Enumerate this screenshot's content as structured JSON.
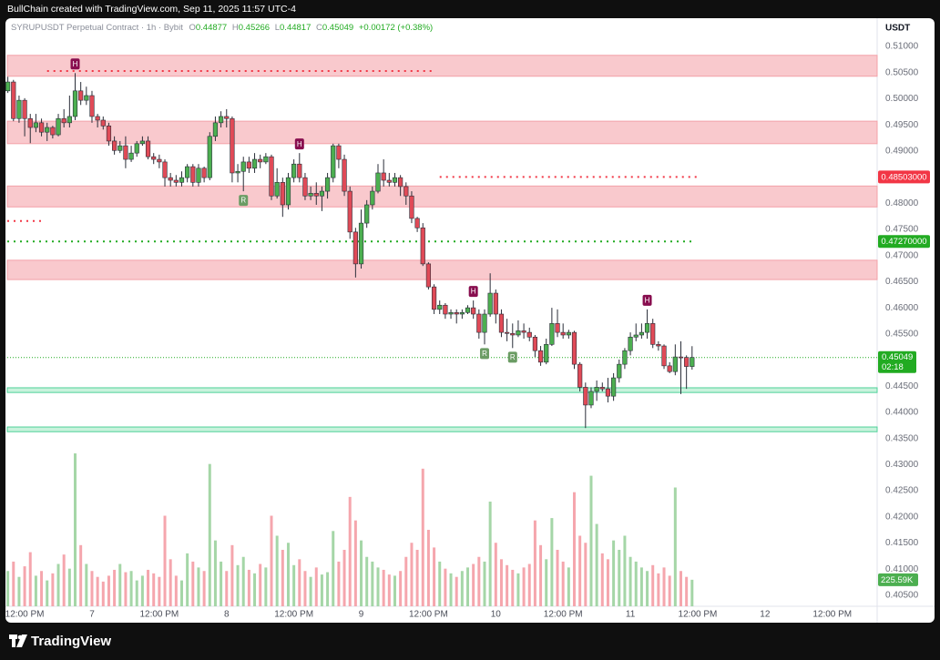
{
  "header": {
    "credit": "BullChain created with TradingView.com, Sep 11, 2025 11:57 UTC-4",
    "symbol": "SYRUPUSDT Perpetual Contract · 1h · Bybit",
    "ohlc": [
      {
        "key": "O",
        "value": "0.44877"
      },
      {
        "key": "H",
        "value": "0.45266"
      },
      {
        "key": "L",
        "value": "0.44817"
      },
      {
        "key": "C",
        "value": "0.45049"
      }
    ],
    "change": "+0.00172 (+0.38%)"
  },
  "currency": "USDT",
  "footer": {
    "brand": "TradingView"
  },
  "chart_data": {
    "type": "candlestick",
    "up_color": "#4caf50",
    "down_color": "#e04a57",
    "wick_color": "#2a2e39",
    "xlim": [
      -3.1,
      152
    ],
    "xticks": [
      {
        "value": 0,
        "label": "12:00 PM"
      },
      {
        "value": 12,
        "label": "7"
      },
      {
        "value": 24,
        "label": "12:00 PM"
      },
      {
        "value": 36,
        "label": "8"
      },
      {
        "value": 48,
        "label": "12:00 PM"
      },
      {
        "value": 60,
        "label": "9"
      },
      {
        "value": 72,
        "label": "12:00 PM"
      },
      {
        "value": 84,
        "label": "10"
      },
      {
        "value": 96,
        "label": "12:00 PM"
      },
      {
        "value": 108,
        "label": "11"
      },
      {
        "value": 120,
        "label": "12:00 PM"
      },
      {
        "value": 132,
        "label": "12"
      },
      {
        "value": 144,
        "label": "12:00 PM"
      }
    ],
    "ylim": [
      0.4029,
      0.5154
    ],
    "yticks": [
      {
        "value": 0.51,
        "label": "0.51000"
      },
      {
        "value": 0.505,
        "label": "0.50500"
      },
      {
        "value": 0.5,
        "label": "0.50000"
      },
      {
        "value": 0.495,
        "label": "0.49500"
      },
      {
        "value": 0.49,
        "label": "0.49000"
      },
      {
        "value": 0.48,
        "label": "0.48000"
      },
      {
        "value": 0.475,
        "label": "0.47500"
      },
      {
        "value": 0.47,
        "label": "0.47000"
      },
      {
        "value": 0.465,
        "label": "0.46500"
      },
      {
        "value": 0.46,
        "label": "0.46000"
      },
      {
        "value": 0.455,
        "label": "0.45500"
      },
      {
        "value": 0.445,
        "label": "0.44500"
      },
      {
        "value": 0.44,
        "label": "0.44000"
      },
      {
        "value": 0.435,
        "label": "0.43500"
      },
      {
        "value": 0.43,
        "label": "0.43000"
      },
      {
        "value": 0.425,
        "label": "0.42500"
      },
      {
        "value": 0.42,
        "label": "0.42000"
      },
      {
        "value": 0.415,
        "label": "0.41500"
      },
      {
        "value": 0.41,
        "label": "0.41000"
      },
      {
        "value": 0.405,
        "label": "0.40500"
      }
    ],
    "x": [
      -3,
      -2,
      -1,
      0,
      1,
      2,
      3,
      4,
      5,
      6,
      7,
      8,
      9,
      10,
      11,
      12,
      13,
      14,
      15,
      16,
      17,
      18,
      19,
      20,
      21,
      22,
      23,
      24,
      25,
      26,
      27,
      28,
      29,
      30,
      31,
      32,
      33,
      34,
      35,
      36,
      37,
      38,
      39,
      40,
      41,
      42,
      43,
      44,
      45,
      46,
      47,
      48,
      49,
      50,
      51,
      52,
      53,
      54,
      55,
      56,
      57,
      58,
      59,
      60,
      61,
      62,
      63,
      64,
      65,
      66,
      67,
      68,
      69,
      70,
      71,
      72,
      73,
      74,
      75,
      76,
      77,
      78,
      79,
      80,
      81,
      82,
      83,
      84,
      85,
      86,
      87,
      88,
      89,
      90,
      91,
      92,
      93,
      94,
      95,
      96,
      97,
      98,
      99,
      100,
      101,
      102,
      103,
      104,
      105,
      106,
      107,
      108,
      109,
      110,
      111,
      112,
      113,
      114,
      115,
      116,
      117,
      118,
      119
    ],
    "open": [
      0.5015,
      0.5032,
      0.4962,
      0.4997,
      0.4962,
      0.4945,
      0.4954,
      0.4936,
      0.4945,
      0.4931,
      0.4962,
      0.4954,
      0.4966,
      0.5015,
      0.4997,
      0.5006,
      0.4966,
      0.4959,
      0.4948,
      0.4919,
      0.4901,
      0.491,
      0.4884,
      0.4896,
      0.4914,
      0.4919,
      0.4889,
      0.4884,
      0.4879,
      0.4849,
      0.4844,
      0.484,
      0.4849,
      0.487,
      0.484,
      0.4867,
      0.4849,
      0.4928,
      0.4954,
      0.4966,
      0.4962,
      0.4858,
      0.4861,
      0.4879,
      0.4867,
      0.4884,
      0.4879,
      0.4889,
      0.4814,
      0.484,
      0.4797,
      0.4849,
      0.4875,
      0.4849,
      0.4814,
      0.4819,
      0.4814,
      0.4823,
      0.4849,
      0.491,
      0.4884,
      0.4823,
      0.4745,
      0.4684,
      0.4762,
      0.4797,
      0.4823,
      0.4858,
      0.4844,
      0.484,
      0.4849,
      0.4832,
      0.4814,
      0.4771,
      0.4753,
      0.4684,
      0.464,
      0.4597,
      0.4605,
      0.4588,
      0.4591,
      0.4588,
      0.4591,
      0.46,
      0.4588,
      0.4553,
      0.4588,
      0.4628,
      0.4588,
      0.4553,
      0.4551,
      0.4548,
      0.4556,
      0.4553,
      0.4544,
      0.4518,
      0.4496,
      0.453,
      0.457,
      0.4553,
      0.4548,
      0.4553,
      0.4492,
      0.4448,
      0.4414,
      0.444,
      0.4448,
      0.4445,
      0.4431,
      0.4466,
      0.4492,
      0.4518,
      0.4544,
      0.4548,
      0.4553,
      0.457,
      0.453,
      0.4527,
      0.4489,
      0.4478,
      0.4506,
      0.4505,
      0.44877
    ],
    "high": [
      0.5042,
      0.5036,
      0.5006,
      0.5001,
      0.4971,
      0.4971,
      0.4962,
      0.4954,
      0.4948,
      0.4971,
      0.498,
      0.5006,
      0.5049,
      0.5032,
      0.5023,
      0.5015,
      0.4971,
      0.4966,
      0.4954,
      0.4928,
      0.4919,
      0.4928,
      0.491,
      0.4919,
      0.4928,
      0.4928,
      0.4896,
      0.4893,
      0.4884,
      0.4858,
      0.4854,
      0.4861,
      0.4875,
      0.4875,
      0.4875,
      0.487,
      0.4936,
      0.4966,
      0.4976,
      0.498,
      0.4966,
      0.4875,
      0.4889,
      0.4889,
      0.4896,
      0.4893,
      0.4896,
      0.4893,
      0.4867,
      0.4849,
      0.4858,
      0.4884,
      0.4896,
      0.4858,
      0.4832,
      0.484,
      0.4832,
      0.4858,
      0.4914,
      0.4914,
      0.4893,
      0.4832,
      0.4753,
      0.4788,
      0.4806,
      0.4832,
      0.4875,
      0.4884,
      0.4858,
      0.4858,
      0.4854,
      0.484,
      0.4823,
      0.4774,
      0.4762,
      0.4687,
      0.4645,
      0.4614,
      0.4609,
      0.4597,
      0.4597,
      0.4597,
      0.4605,
      0.4614,
      0.4597,
      0.4597,
      0.4666,
      0.4635,
      0.4597,
      0.4579,
      0.457,
      0.4576,
      0.457,
      0.4562,
      0.4548,
      0.4527,
      0.4541,
      0.46,
      0.4597,
      0.457,
      0.4558,
      0.4556,
      0.4496,
      0.4457,
      0.4448,
      0.4461,
      0.4457,
      0.4466,
      0.4475,
      0.4501,
      0.4523,
      0.4553,
      0.457,
      0.457,
      0.4597,
      0.4579,
      0.4536,
      0.453,
      0.4496,
      0.453,
      0.4536,
      0.4509,
      0.45266
    ],
    "low": [
      0.5011,
      0.4957,
      0.4954,
      0.4928,
      0.4915,
      0.4936,
      0.4928,
      0.4919,
      0.4924,
      0.4928,
      0.4945,
      0.4945,
      0.4959,
      0.4988,
      0.4988,
      0.4954,
      0.4945,
      0.4941,
      0.491,
      0.4893,
      0.4896,
      0.4867,
      0.4879,
      0.4889,
      0.491,
      0.4884,
      0.4875,
      0.4867,
      0.4832,
      0.4832,
      0.4832,
      0.4832,
      0.484,
      0.4832,
      0.4832,
      0.484,
      0.4844,
      0.4919,
      0.4945,
      0.4945,
      0.484,
      0.484,
      0.4823,
      0.4858,
      0.4858,
      0.4867,
      0.4875,
      0.4806,
      0.4809,
      0.4774,
      0.4788,
      0.484,
      0.484,
      0.4806,
      0.4806,
      0.4797,
      0.4785,
      0.4809,
      0.484,
      0.4867,
      0.4814,
      0.4732,
      0.4658,
      0.4675,
      0.4753,
      0.4788,
      0.4819,
      0.4832,
      0.4832,
      0.4832,
      0.4814,
      0.4797,
      0.4762,
      0.4745,
      0.468,
      0.4635,
      0.4588,
      0.4588,
      0.4579,
      0.4579,
      0.457,
      0.4579,
      0.4588,
      0.4579,
      0.4541,
      0.453,
      0.4583,
      0.457,
      0.4544,
      0.4536,
      0.4523,
      0.4544,
      0.4541,
      0.4536,
      0.4506,
      0.4489,
      0.4492,
      0.4527,
      0.4544,
      0.4541,
      0.4541,
      0.4483,
      0.444,
      0.437,
      0.4408,
      0.4422,
      0.444,
      0.4419,
      0.4422,
      0.4457,
      0.4483,
      0.4509,
      0.4536,
      0.4541,
      0.4541,
      0.4523,
      0.4518,
      0.4483,
      0.4475,
      0.4471,
      0.4435,
      0.4445,
      0.44817
    ],
    "close": [
      0.5032,
      0.4962,
      0.4997,
      0.4962,
      0.4945,
      0.4954,
      0.4936,
      0.4945,
      0.4931,
      0.4962,
      0.4954,
      0.4966,
      0.5015,
      0.4997,
      0.5006,
      0.4966,
      0.4959,
      0.4948,
      0.4919,
      0.4901,
      0.491,
      0.4884,
      0.4896,
      0.4914,
      0.4919,
      0.4889,
      0.4884,
      0.4879,
      0.4849,
      0.4844,
      0.484,
      0.4849,
      0.487,
      0.484,
      0.4867,
      0.4849,
      0.4928,
      0.4954,
      0.4966,
      0.4962,
      0.4858,
      0.4861,
      0.4879,
      0.4867,
      0.4884,
      0.4879,
      0.4889,
      0.4814,
      0.484,
      0.4797,
      0.4849,
      0.4875,
      0.4849,
      0.4814,
      0.4819,
      0.4814,
      0.4823,
      0.4849,
      0.491,
      0.4884,
      0.4823,
      0.4745,
      0.4684,
      0.4762,
      0.4797,
      0.4823,
      0.4858,
      0.4844,
      0.484,
      0.4849,
      0.4832,
      0.4814,
      0.4771,
      0.4753,
      0.4684,
      0.464,
      0.4597,
      0.4605,
      0.4588,
      0.4591,
      0.4588,
      0.4591,
      0.46,
      0.4588,
      0.4553,
      0.4588,
      0.4628,
      0.4588,
      0.4553,
      0.4551,
      0.4548,
      0.4556,
      0.4553,
      0.4544,
      0.4518,
      0.4496,
      0.453,
      0.457,
      0.4553,
      0.4548,
      0.4553,
      0.4492,
      0.4448,
      0.4414,
      0.444,
      0.4448,
      0.4445,
      0.4431,
      0.4466,
      0.4492,
      0.4518,
      0.4544,
      0.4548,
      0.4553,
      0.457,
      0.453,
      0.4527,
      0.4489,
      0.4478,
      0.4506,
      0.4505,
      0.44877,
      0.45049
    ],
    "volume": {
      "lim": [
        0,
        5000
      ],
      "up_color": "#a5d6a7",
      "down_color": "#f5a6ad",
      "last_label": "225.59K",
      "values": [
        300,
        380,
        250,
        340,
        460,
        260,
        300,
        220,
        280,
        360,
        440,
        320,
        1300,
        520,
        360,
        300,
        250,
        210,
        260,
        310,
        360,
        290,
        300,
        220,
        260,
        310,
        280,
        250,
        770,
        400,
        260,
        220,
        450,
        380,
        330,
        300,
        1210,
        560,
        380,
        300,
        520,
        350,
        420,
        310,
        280,
        360,
        330,
        770,
        600,
        480,
        540,
        350,
        400,
        300,
        250,
        330,
        270,
        290,
        640,
        380,
        480,
        930,
        730,
        560,
        420,
        380,
        330,
        310,
        270,
        260,
        300,
        420,
        540,
        480,
        1170,
        650,
        500,
        380,
        320,
        280,
        250,
        300,
        330,
        360,
        420,
        380,
        890,
        540,
        400,
        350,
        310,
        280,
        330,
        360,
        730,
        520,
        400,
        750,
        480,
        380,
        330,
        970,
        600,
        540,
        1110,
        700,
        450,
        400,
        560,
        480,
        600,
        420,
        380,
        330,
        300,
        350,
        280,
        330,
        260,
        1010,
        300,
        250,
        225.59
      ]
    },
    "zones": [
      {
        "low": 0.5043,
        "high": 0.5083,
        "color": "#f9c9cd",
        "border": "#f3a1a8"
      },
      {
        "low": 0.4914,
        "high": 0.4957,
        "color": "#f9c9cd",
        "border": "#f3a1a8"
      },
      {
        "low": 0.4793,
        "high": 0.4833,
        "color": "#f9c9cd",
        "border": "#f3a1a8"
      },
      {
        "low": 0.4654,
        "high": 0.4691,
        "color": "#f9c9cd",
        "border": "#f3a1a8"
      },
      {
        "low": 0.4438,
        "high": 0.4447,
        "color": "#c8f2dc",
        "border": "#4fd19a"
      },
      {
        "low": 0.4363,
        "high": 0.4372,
        "color": "#c8f2dc",
        "border": "#4fd19a"
      }
    ],
    "levels": [
      {
        "value": 0.5053,
        "color": "#f23645",
        "from": 4,
        "to": 73
      },
      {
        "value": 0.48503,
        "label": "0.48503000",
        "color": "#f23645",
        "from": 74,
        "to": 120
      },
      {
        "value": 0.4766,
        "color": "#f23645",
        "from": -3.1,
        "to": 3
      },
      {
        "value": 0.4727,
        "label": "0.47270000",
        "color": "#22ab22",
        "from": -3.1,
        "to": 119.5
      }
    ],
    "last_price": {
      "value": 0.45049,
      "label": "0.45049",
      "countdown": "02:18",
      "color": "#22ab22"
    },
    "markers": [
      {
        "text": "H",
        "x": 9,
        "color": "#880e4f"
      },
      {
        "text": "R",
        "x": 39,
        "color": "#6b9c64"
      },
      {
        "text": "H",
        "x": 49,
        "color": "#880e4f"
      },
      {
        "text": "H",
        "x": 80,
        "color": "#880e4f"
      },
      {
        "text": "R",
        "x": 82,
        "color": "#6b9c64"
      },
      {
        "text": "R",
        "x": 87,
        "color": "#6b9c64"
      },
      {
        "text": "H",
        "x": 111,
        "color": "#880e4f"
      }
    ]
  }
}
